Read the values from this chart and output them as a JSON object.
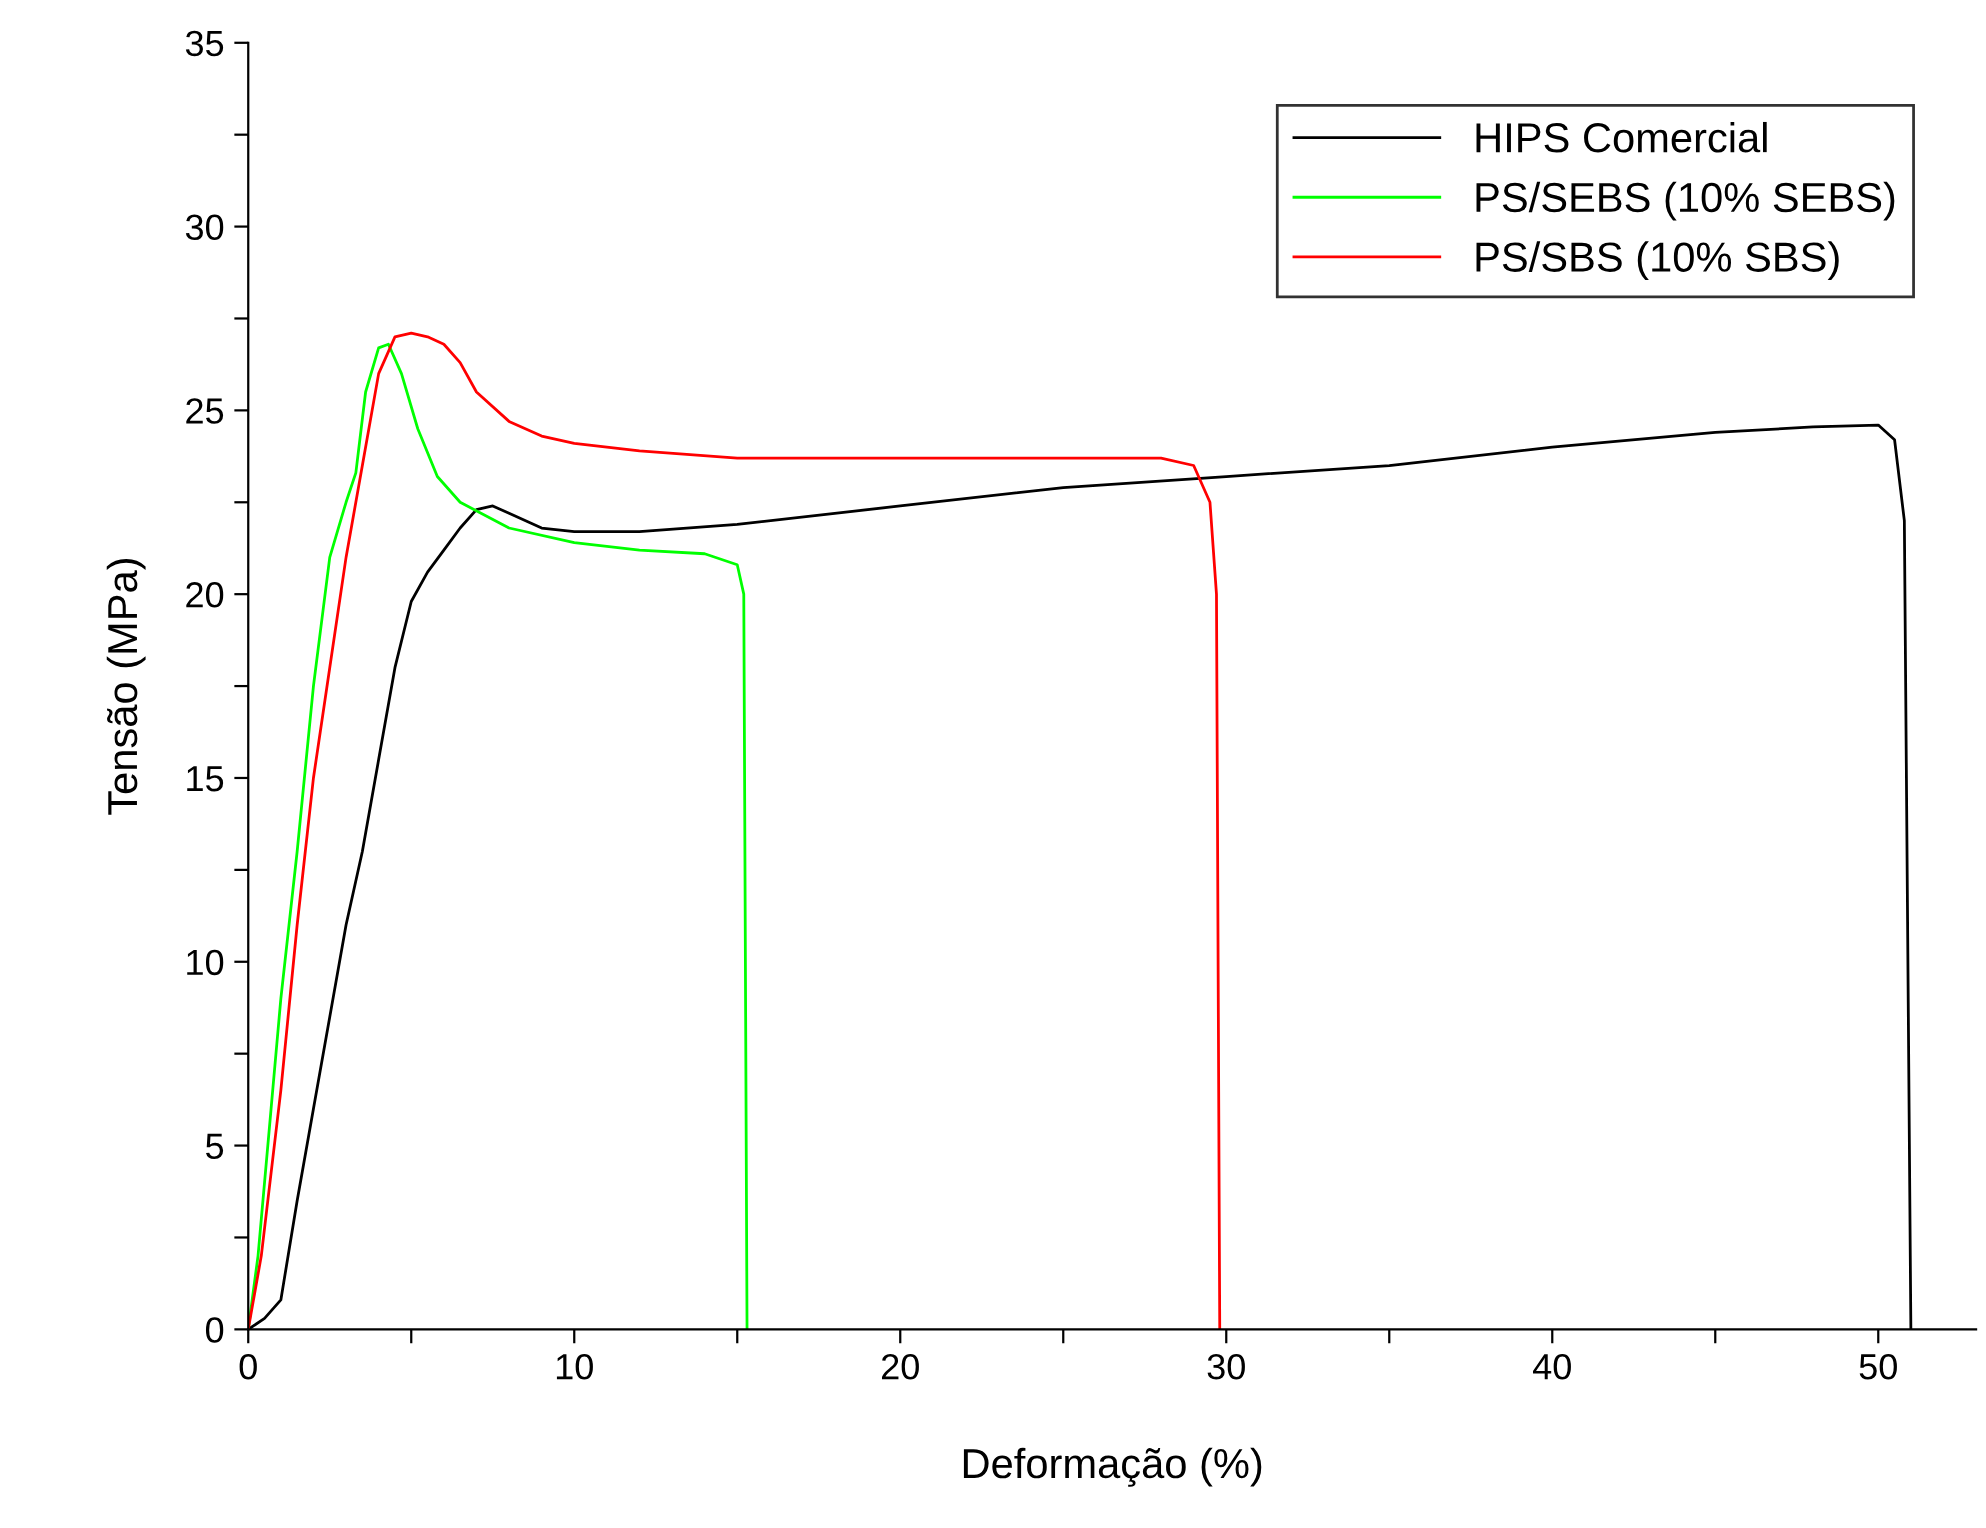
{
  "chart_data": {
    "type": "line",
    "xlabel": "Deformação (%)",
    "ylabel": "Tensão (MPa)",
    "xlim": [
      0,
      53
    ],
    "ylim": [
      0,
      35
    ],
    "xticks": [
      0,
      {
        "value": 5,
        "label": null
      },
      10,
      {
        "value": 15,
        "label": null
      },
      20,
      {
        "value": 25,
        "label": null
      },
      30,
      {
        "value": 35,
        "label": null
      },
      40,
      {
        "value": 45,
        "label": null
      },
      50
    ],
    "yticks": [
      0,
      {
        "value": 2.5,
        "label": null
      },
      5,
      {
        "value": 7.5,
        "label": null
      },
      10,
      {
        "value": 12.5,
        "label": null
      },
      15,
      {
        "value": 17.5,
        "label": null
      },
      20,
      {
        "value": 22.5,
        "label": null
      },
      25,
      {
        "value": 27.5,
        "label": null
      },
      30,
      {
        "value": 32.5,
        "label": null
      },
      35
    ],
    "grid": false,
    "legend": "top right",
    "marker": "none",
    "line_style": "solid",
    "series": [
      {
        "name": "HIPS Comercial",
        "color": "#000000",
        "x": [
          0,
          0.5,
          1,
          1.5,
          2,
          2.5,
          3,
          3.5,
          4,
          4.5,
          5,
          5.5,
          6,
          6.5,
          7,
          7.5,
          8,
          9,
          10,
          12,
          15,
          20,
          25,
          30,
          35,
          40,
          45,
          48,
          50,
          50.5,
          50.8,
          51
        ],
        "values": [
          0,
          0.3,
          0.8,
          3.5,
          6,
          8.5,
          11,
          13,
          15.5,
          18,
          19.8,
          20.6,
          21.2,
          21.8,
          22.3,
          22.4,
          22.2,
          21.8,
          21.7,
          21.7,
          21.9,
          22.4,
          22.9,
          23.2,
          23.5,
          24.0,
          24.4,
          24.55,
          24.6,
          24.2,
          22,
          0
        ]
      },
      {
        "name": "PS/SEBS (10% SEBS)",
        "color": "#00ff00",
        "x": [
          0,
          0.3,
          0.7,
          1,
          1.5,
          2,
          2.5,
          3,
          3.3,
          3.6,
          4,
          4.3,
          4.7,
          5.2,
          5.8,
          6.5,
          8,
          10,
          12,
          14,
          15,
          15.2,
          15.3
        ],
        "values": [
          0,
          2,
          6,
          9,
          13,
          17.5,
          21,
          22.5,
          23.3,
          25.5,
          26.7,
          26.8,
          26,
          24.5,
          23.2,
          22.5,
          21.8,
          21.4,
          21.2,
          21.1,
          20.8,
          20,
          0
        ]
      },
      {
        "name": "PS/SBS (10% SBS)",
        "color": "#ff0000",
        "x": [
          0,
          0.4,
          1,
          1.5,
          2,
          2.5,
          3,
          3.5,
          4,
          4.5,
          5,
          5.5,
          6,
          6.5,
          7,
          8,
          9,
          10,
          12,
          15,
          20,
          25,
          28,
          29,
          29.5,
          29.7,
          29.8
        ],
        "values": [
          0,
          2,
          6.5,
          11,
          15,
          18,
          21,
          23.5,
          26,
          27,
          27.1,
          27,
          26.8,
          26.3,
          25.5,
          24.7,
          24.3,
          24.1,
          23.9,
          23.7,
          23.7,
          23.7,
          23.7,
          23.5,
          22.5,
          20,
          0
        ]
      }
    ]
  }
}
